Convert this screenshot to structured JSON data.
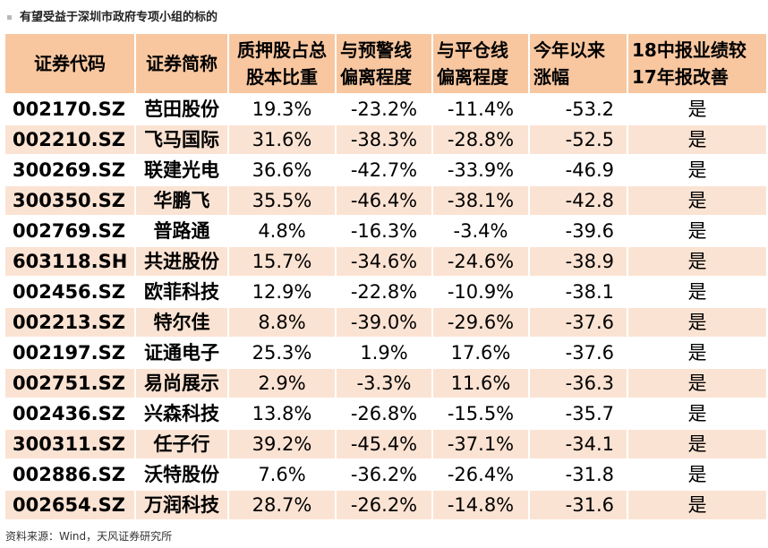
{
  "title": "有望受益于深圳市政府专项小组的标的",
  "columns": [
    "证券代码",
    "证券简称",
    "质押股占总股本比重",
    "与预警线偏离程度",
    "与平仓线偏离程度",
    "今年以来涨幅",
    "18中报业绩较17年报改善"
  ],
  "header_lines": [
    [
      "证券代码"
    ],
    [
      "证券简称"
    ],
    [
      "质押股占总",
      "股本比重"
    ],
    [
      "与预警线",
      "偏离程度"
    ],
    [
      "与平仓线",
      "偏离程度"
    ],
    [
      "今年以来",
      "涨幅"
    ],
    [
      "18中报业绩较",
      "17年报改善"
    ]
  ],
  "rows": [
    [
      "002170.SZ",
      "芭田股份",
      "19.3%",
      "-23.2%",
      "-11.4%",
      "-53.2",
      "是"
    ],
    [
      "002210.SZ",
      "飞马国际",
      "31.6%",
      "-38.3%",
      "-28.8%",
      "-52.5",
      "是"
    ],
    [
      "300269.SZ",
      "联建光电",
      "36.6%",
      "-42.7%",
      "-33.9%",
      "-46.9",
      "是"
    ],
    [
      "300350.SZ",
      "华鹏飞",
      "35.5%",
      "-46.4%",
      "-38.1%",
      "-42.8",
      "是"
    ],
    [
      "002769.SZ",
      "普路通",
      "4.8%",
      "-16.3%",
      "-3.4%",
      "-39.6",
      "是"
    ],
    [
      "603118.SH",
      "共进股份",
      "15.7%",
      "-34.6%",
      "-24.6%",
      "-38.9",
      "是"
    ],
    [
      "002456.SZ",
      "欧菲科技",
      "12.9%",
      "-22.8%",
      "-10.9%",
      "-38.1",
      "是"
    ],
    [
      "002213.SZ",
      "特尔佳",
      "8.8%",
      "-39.0%",
      "-29.6%",
      "-37.6",
      "是"
    ],
    [
      "002197.SZ",
      "证通电子",
      "25.3%",
      "1.9%",
      "17.6%",
      "-37.6",
      "是"
    ],
    [
      "002751.SZ",
      "易尚展示",
      "2.9%",
      "-3.3%",
      "11.6%",
      "-36.3",
      "是"
    ],
    [
      "002436.SZ",
      "兴森科技",
      "13.8%",
      "-26.8%",
      "-15.5%",
      "-35.7",
      "是"
    ],
    [
      "300311.SZ",
      "任子行",
      "39.2%",
      "-45.4%",
      "-37.1%",
      "-34.1",
      "是"
    ],
    [
      "002886.SZ",
      "沃特股份",
      "7.6%",
      "-36.2%",
      "-26.4%",
      "-31.8",
      "是"
    ],
    [
      "002654.SZ",
      "万润科技",
      "28.7%",
      "-26.2%",
      "-14.8%",
      "-31.6",
      "是"
    ]
  ],
  "source": "资料来源：Wind，天风证券研究所",
  "colors": {
    "header_bg": "#f8c7a0",
    "band_bg": "#fbe3d3",
    "rule": "#e8762e"
  }
}
